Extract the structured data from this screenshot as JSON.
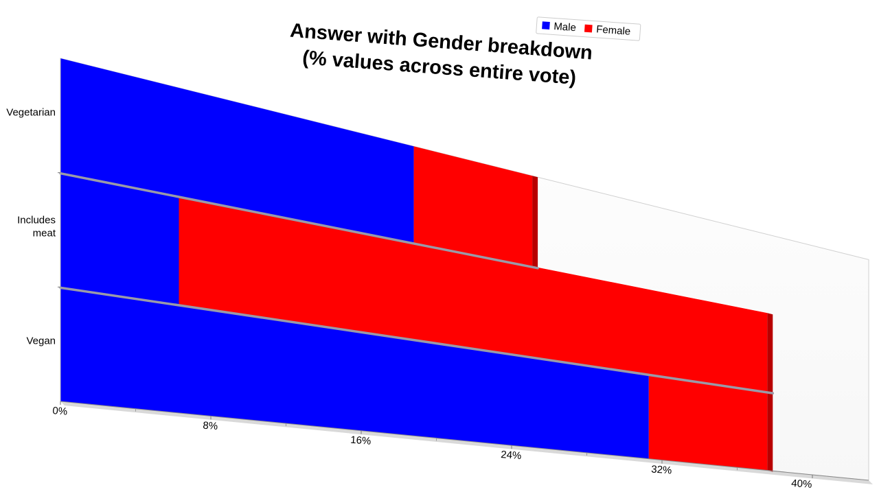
{
  "chart_data": {
    "type": "bar",
    "orientation": "horizontal",
    "stacked": true,
    "title": "Answer with Gender breakdown\n(% values across entire vote)",
    "title_lines": [
      "Answer with Gender breakdown",
      "(% values across entire vote)"
    ],
    "categories": [
      "Vegetarian",
      "Includes meat",
      "Vegan"
    ],
    "category_label_lines": [
      [
        "Vegetarian"
      ],
      [
        "Includes",
        "meat"
      ],
      [
        "Vegan"
      ]
    ],
    "series": [
      {
        "name": "Male",
        "color": "#0000ff",
        "values": [
          18.8,
          6.3,
          31.3
        ]
      },
      {
        "name": "Female",
        "color": "#ff0000",
        "values": [
          6.3,
          31.3,
          6.3
        ]
      }
    ],
    "xlim": [
      0,
      40
    ],
    "xticks": [
      0,
      8,
      16,
      24,
      32,
      40
    ],
    "tick_labels": [
      "0%",
      "8%",
      "16%",
      "24%",
      "32%",
      "40%"
    ],
    "xlabel": "",
    "ylabel": "",
    "legend": {
      "position": "top-right",
      "entries": [
        "Male",
        "Female"
      ]
    },
    "grid": false,
    "style": "3d-perspective"
  }
}
